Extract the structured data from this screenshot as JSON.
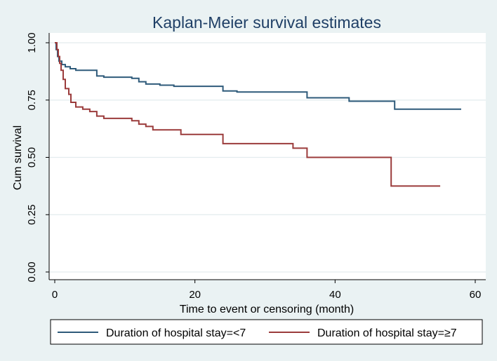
{
  "chart_data": {
    "type": "line",
    "title": "Kaplan-Meier survival estimates",
    "xlabel": "Time to event or censoring (month)",
    "ylabel": "Cum survival",
    "xlim": [
      0,
      60
    ],
    "ylim": [
      0,
      1
    ],
    "xticks": [
      0,
      20,
      40,
      60
    ],
    "xtick_labels": [
      "0",
      "20",
      "40",
      "60"
    ],
    "yticks": [
      0,
      0.25,
      0.5,
      0.75,
      1
    ],
    "ytick_labels": [
      "0.00",
      "0.25",
      "0.50",
      "0.75",
      "1.00"
    ],
    "grid": true,
    "legend_position": "bottom",
    "series": [
      {
        "name": "Duration of hospital stay=<7",
        "color": "#2e5a7a",
        "steps": [
          [
            0,
            1.0
          ],
          [
            0.2,
            0.97
          ],
          [
            0.4,
            0.94
          ],
          [
            0.6,
            0.92
          ],
          [
            1.0,
            0.905
          ],
          [
            1.5,
            0.895
          ],
          [
            2.2,
            0.887
          ],
          [
            3.0,
            0.88
          ],
          [
            6.0,
            0.855
          ],
          [
            7.0,
            0.85
          ],
          [
            11.0,
            0.845
          ],
          [
            12.0,
            0.83
          ],
          [
            13.0,
            0.82
          ],
          [
            15.0,
            0.815
          ],
          [
            17.0,
            0.81
          ],
          [
            24.0,
            0.79
          ],
          [
            26.0,
            0.785
          ],
          [
            36.0,
            0.76
          ],
          [
            42.0,
            0.745
          ],
          [
            48.5,
            0.71
          ],
          [
            58.0,
            0.71
          ]
        ]
      },
      {
        "name": "Duration of hospital stay=≥7",
        "color": "#9b3b3b",
        "steps": [
          [
            0,
            1.0
          ],
          [
            0.3,
            0.97
          ],
          [
            0.5,
            0.94
          ],
          [
            0.7,
            0.91
          ],
          [
            0.9,
            0.88
          ],
          [
            1.2,
            0.84
          ],
          [
            1.5,
            0.8
          ],
          [
            2.0,
            0.775
          ],
          [
            2.3,
            0.74
          ],
          [
            3.0,
            0.72
          ],
          [
            4.0,
            0.71
          ],
          [
            5.0,
            0.7
          ],
          [
            6.0,
            0.68
          ],
          [
            7.0,
            0.67
          ],
          [
            11.0,
            0.66
          ],
          [
            12.0,
            0.645
          ],
          [
            13.0,
            0.635
          ],
          [
            14.0,
            0.62
          ],
          [
            18.0,
            0.6
          ],
          [
            24.0,
            0.56
          ],
          [
            34.0,
            0.54
          ],
          [
            36.0,
            0.5
          ],
          [
            48.0,
            0.375
          ],
          [
            55.0,
            0.375
          ]
        ]
      }
    ]
  }
}
